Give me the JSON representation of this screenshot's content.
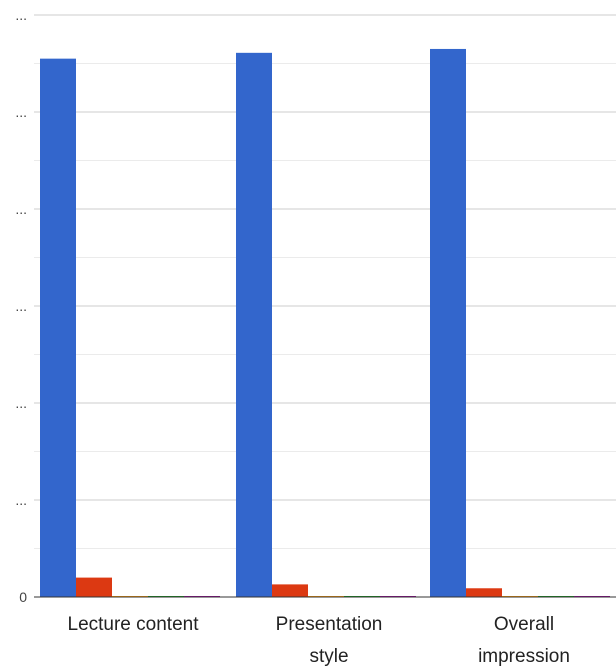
{
  "chart_data": {
    "type": "bar",
    "categories": [
      "Lecture content",
      "Presentation style",
      "Overall impression"
    ],
    "category_label_lines": [
      [
        "Lecture content"
      ],
      [
        "Presentation",
        "style"
      ],
      [
        "Overall",
        "impression"
      ]
    ],
    "y_tick_labels": [
      "0",
      "...",
      "...",
      "...",
      "...",
      "...",
      "..."
    ],
    "ylim": [
      0,
      6
    ],
    "series": [
      {
        "color": "#3366cc",
        "values": [
          5.55,
          5.61,
          5.65
        ]
      },
      {
        "color": "#dc3912",
        "values": [
          0.2,
          0.13,
          0.09
        ]
      },
      {
        "color": "#ff9900",
        "values": [
          0.005,
          0.005,
          0.005
        ]
      },
      {
        "color": "#109618",
        "values": [
          0.005,
          0.005,
          0.005
        ]
      },
      {
        "color": "#990099",
        "values": [
          0.005,
          0.005,
          0.005
        ]
      }
    ],
    "grid": true,
    "legend": "none"
  }
}
